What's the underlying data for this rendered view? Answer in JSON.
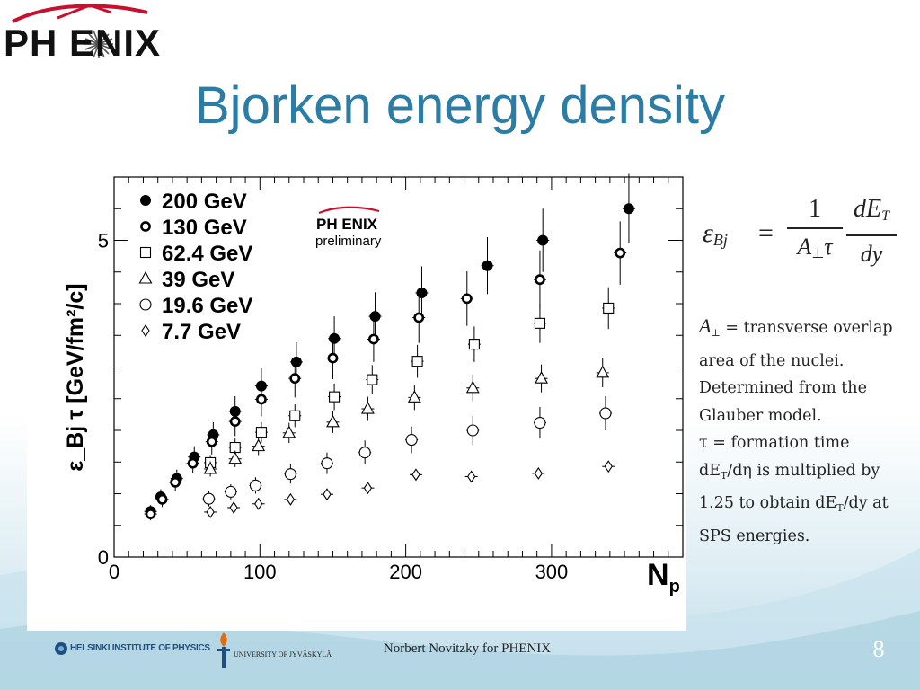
{
  "slide": {
    "logo_text": "PH ENIX",
    "title": "Bjorken energy density",
    "footer": "Norbert Novitzky for PHENIX",
    "page_number": "8",
    "institution_logos": [
      "HELSINKI INSTITUTE OF PHYSICS",
      "UNIVERSITY OF JYVÄSKYLÄ"
    ],
    "accent_color": "#2b7da6",
    "logo_arc_color": "#c8102e"
  },
  "formula": {
    "lhs": "ε",
    "lhs_sub": "Bj",
    "num1": "1",
    "den1": "A",
    "den1_sub": "⊥",
    "den1_tail": "τ",
    "num2": "dE",
    "num2_sub": "T",
    "den2": "dy"
  },
  "notes": {
    "a_symbol": "A",
    "a_sub": "⊥",
    "line1": "= transverse overlap area of the nuclei. Determined from the Glauber model.",
    "tau_line": "τ = formation time",
    "det_pre": "dE",
    "det_sub": "T",
    "det_post": "/dη is multiplied by 1.25 to obtain ",
    "det2_pre": "dE",
    "det2_sub": "T",
    "det2_post": "/dy at SPS energies."
  },
  "chart_data": {
    "type": "scatter",
    "ylabel": "ε_Bj τ [GeV/fm²/c]",
    "xlabel": "N_p",
    "x_ticks": [
      "0",
      "100",
      "200",
      "300"
    ],
    "y_ticks": [
      "0",
      "5"
    ],
    "xlim": [
      0,
      390
    ],
    "ylim": [
      0,
      6
    ],
    "legend_position": "top-left",
    "inset_label": {
      "logo": "PH ENIX",
      "text": "preliminary"
    },
    "series": [
      {
        "name": "200 GeV",
        "marker": "filled-circle",
        "points": [
          [
            25,
            0.72,
            0.1
          ],
          [
            32,
            0.95,
            0.12
          ],
          [
            43,
            1.24,
            0.14
          ],
          [
            55,
            1.58,
            0.17
          ],
          [
            68,
            1.93,
            0.2
          ],
          [
            83,
            2.3,
            0.24
          ],
          [
            101,
            2.7,
            0.28
          ],
          [
            125,
            3.08,
            0.31
          ],
          [
            151,
            3.45,
            0.35
          ],
          [
            179,
            3.8,
            0.38
          ],
          [
            211,
            4.17,
            0.42
          ],
          [
            256,
            4.6,
            0.45
          ],
          [
            294,
            5.0,
            0.5
          ],
          [
            353,
            5.5,
            0.55
          ]
        ]
      },
      {
        "name": "130 GeV",
        "marker": "thick-open-circle",
        "points": [
          [
            25,
            0.68,
            0.1
          ],
          [
            33,
            0.91,
            0.12
          ],
          [
            42,
            1.18,
            0.14
          ],
          [
            54,
            1.48,
            0.16
          ],
          [
            67,
            1.82,
            0.2
          ],
          [
            83,
            2.14,
            0.23
          ],
          [
            101,
            2.49,
            0.27
          ],
          [
            124,
            2.82,
            0.3
          ],
          [
            150,
            3.14,
            0.33
          ],
          [
            178,
            3.44,
            0.36
          ],
          [
            209,
            3.78,
            0.4
          ],
          [
            242,
            4.08,
            0.43
          ],
          [
            292,
            4.38,
            0.46
          ],
          [
            347,
            4.8,
            0.5
          ]
        ]
      },
      {
        "name": "62.4 GeV",
        "marker": "open-square",
        "points": [
          [
            66,
            1.49,
            0.12
          ],
          [
            83,
            1.73,
            0.14
          ],
          [
            101,
            1.97,
            0.16
          ],
          [
            124,
            2.23,
            0.18
          ],
          [
            151,
            2.53,
            0.21
          ],
          [
            177,
            2.8,
            0.23
          ],
          [
            208,
            3.09,
            0.26
          ],
          [
            247,
            3.36,
            0.28
          ],
          [
            292,
            3.69,
            0.31
          ],
          [
            339,
            3.93,
            0.33
          ]
        ]
      },
      {
        "name": "39 GeV",
        "marker": "open-triangle",
        "points": [
          [
            66,
            1.39,
            0.12
          ],
          [
            83,
            1.55,
            0.13
          ],
          [
            99,
            1.75,
            0.14
          ],
          [
            120,
            1.96,
            0.16
          ],
          [
            150,
            2.13,
            0.17
          ],
          [
            174,
            2.34,
            0.19
          ],
          [
            206,
            2.52,
            0.2
          ],
          [
            246,
            2.67,
            0.21
          ],
          [
            293,
            2.82,
            0.22
          ],
          [
            335,
            2.91,
            0.23
          ]
        ]
      },
      {
        "name": "19.6 GeV",
        "marker": "open-circle",
        "points": [
          [
            65,
            0.92,
            0.12
          ],
          [
            80,
            1.03,
            0.12
          ],
          [
            97,
            1.13,
            0.13
          ],
          [
            121,
            1.31,
            0.15
          ],
          [
            146,
            1.48,
            0.17
          ],
          [
            172,
            1.65,
            0.19
          ],
          [
            204,
            1.85,
            0.21
          ],
          [
            246,
            2.0,
            0.23
          ],
          [
            292,
            2.12,
            0.25
          ],
          [
            337,
            2.27,
            0.27
          ]
        ]
      },
      {
        "name": "7.7 GeV",
        "marker": "open-diamond",
        "points": [
          [
            66,
            0.71,
            0.06
          ],
          [
            82,
            0.78,
            0.06
          ],
          [
            99,
            0.84,
            0.06
          ],
          [
            121,
            0.91,
            0.07
          ],
          [
            146,
            0.99,
            0.07
          ],
          [
            174,
            1.09,
            0.07
          ],
          [
            207,
            1.3,
            0.08
          ],
          [
            245,
            1.27,
            0.08
          ],
          [
            291,
            1.32,
            0.08
          ],
          [
            339,
            1.43,
            0.08
          ]
        ]
      }
    ]
  }
}
